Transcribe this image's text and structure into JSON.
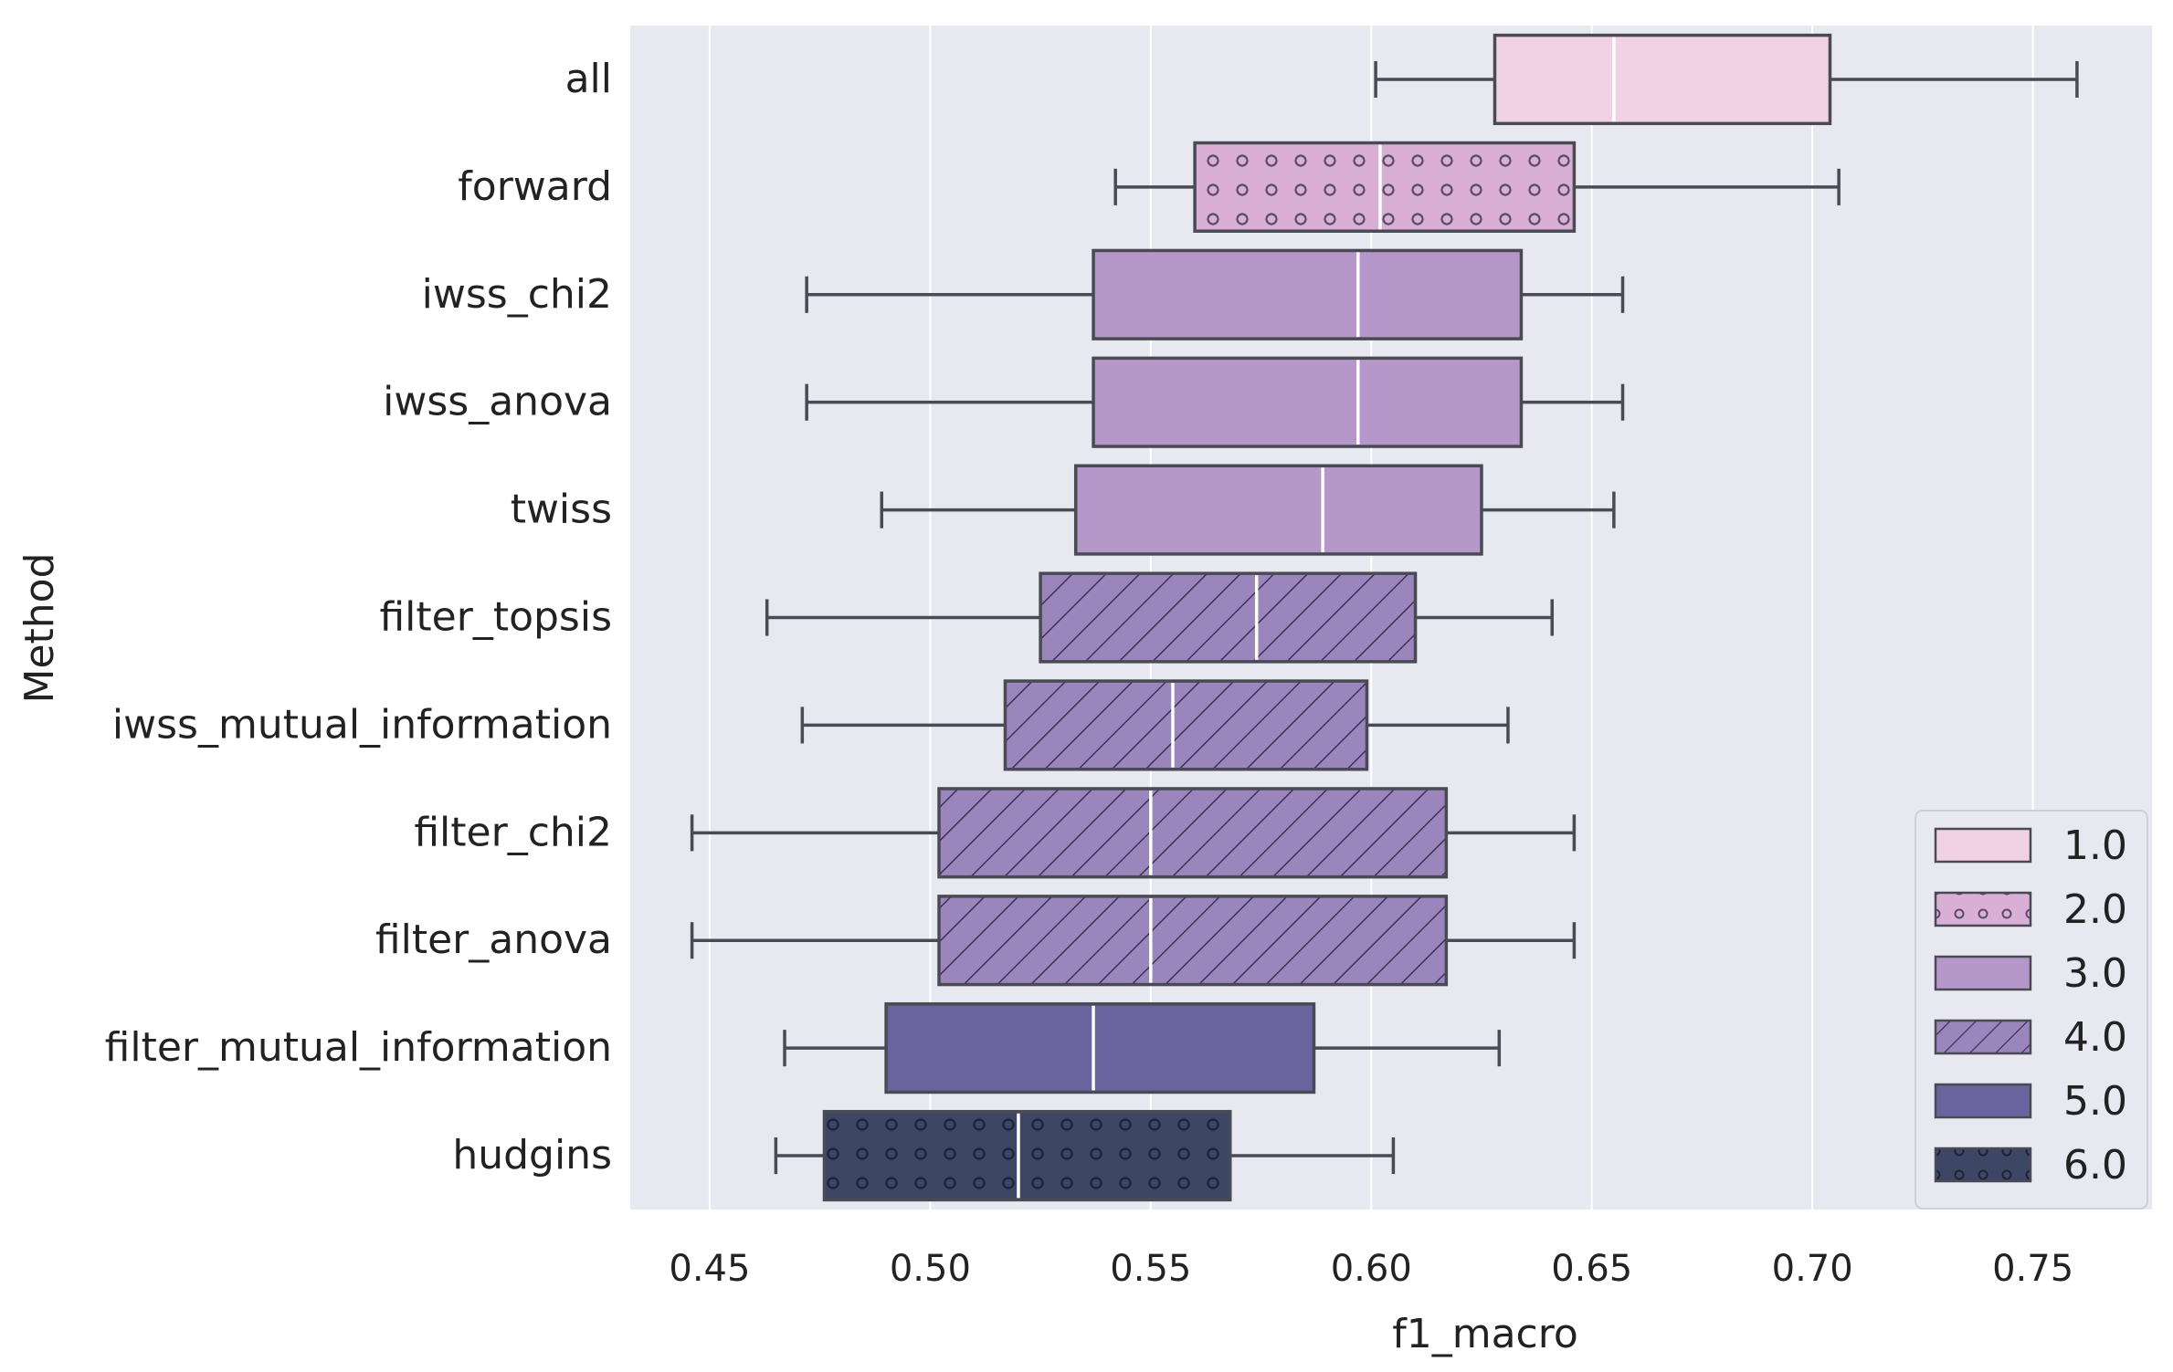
{
  "chart_data": {
    "type": "boxplot",
    "orientation": "horizontal",
    "xlabel": "f1_macro",
    "ylabel": "Method",
    "xlim": [
      0.432,
      0.777
    ],
    "xticks": [
      0.45,
      0.5,
      0.55,
      0.6,
      0.65,
      0.7,
      0.75
    ],
    "xtick_labels": [
      "0.45",
      "0.50",
      "0.55",
      "0.60",
      "0.65",
      "0.70",
      "0.75"
    ],
    "grid": "vertical",
    "background_color": "#e8e8f1",
    "legend": {
      "placement": "bottom-right",
      "entries": [
        {
          "label": "1.0",
          "color": "#f0d2e4",
          "pattern": "none"
        },
        {
          "label": "2.0",
          "color": "#d9afd6",
          "pattern": "circles"
        },
        {
          "label": "3.0",
          "color": "#b597c9",
          "pattern": "none"
        },
        {
          "label": "4.0",
          "color": "#9a86bc",
          "pattern": "hatch"
        },
        {
          "label": "5.0",
          "color": "#6a639e",
          "pattern": "none"
        },
        {
          "label": "6.0",
          "color": "#3e4666",
          "pattern": "circles"
        }
      ]
    },
    "series": [
      {
        "method": "all",
        "group": "1.0",
        "whisker_low": 0.601,
        "q1": 0.628,
        "median": 0.655,
        "q3": 0.704,
        "whisker_high": 0.76
      },
      {
        "method": "forward",
        "group": "2.0",
        "whisker_low": 0.542,
        "q1": 0.56,
        "median": 0.602,
        "q3": 0.646,
        "whisker_high": 0.706
      },
      {
        "method": "iwss_chi2",
        "group": "3.0",
        "whisker_low": 0.472,
        "q1": 0.537,
        "median": 0.597,
        "q3": 0.634,
        "whisker_high": 0.657
      },
      {
        "method": "iwss_anova",
        "group": "3.0",
        "whisker_low": 0.472,
        "q1": 0.537,
        "median": 0.597,
        "q3": 0.634,
        "whisker_high": 0.657
      },
      {
        "method": "twiss",
        "group": "3.0",
        "whisker_low": 0.489,
        "q1": 0.533,
        "median": 0.589,
        "q3": 0.625,
        "whisker_high": 0.655
      },
      {
        "method": "filter_topsis",
        "group": "4.0",
        "whisker_low": 0.463,
        "q1": 0.525,
        "median": 0.574,
        "q3": 0.61,
        "whisker_high": 0.641
      },
      {
        "method": "iwss_mutual_information",
        "group": "4.0",
        "whisker_low": 0.471,
        "q1": 0.517,
        "median": 0.555,
        "q3": 0.599,
        "whisker_high": 0.631
      },
      {
        "method": "filter_chi2",
        "group": "4.0",
        "whisker_low": 0.446,
        "q1": 0.502,
        "median": 0.55,
        "q3": 0.617,
        "whisker_high": 0.646
      },
      {
        "method": "filter_anova",
        "group": "4.0",
        "whisker_low": 0.446,
        "q1": 0.502,
        "median": 0.55,
        "q3": 0.617,
        "whisker_high": 0.646
      },
      {
        "method": "filter_mutual_information",
        "group": "5.0",
        "whisker_low": 0.467,
        "q1": 0.49,
        "median": 0.537,
        "q3": 0.587,
        "whisker_high": 0.629
      },
      {
        "method": "hudgins",
        "group": "6.0",
        "whisker_low": 0.465,
        "q1": 0.476,
        "median": 0.52,
        "q3": 0.568,
        "whisker_high": 0.605
      }
    ]
  }
}
